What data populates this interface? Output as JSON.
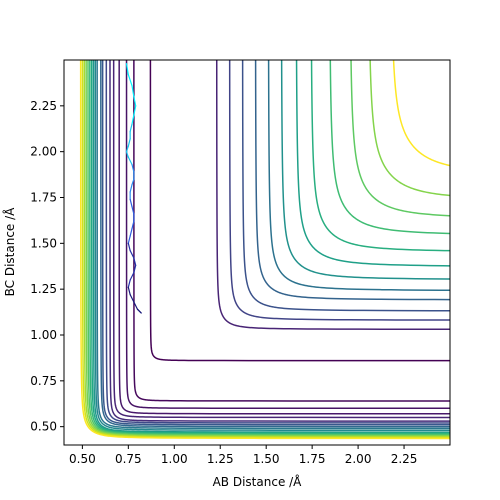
{
  "chart_data": {
    "type": "contour",
    "title": "",
    "xlabel": "AB Distance /Å",
    "ylabel": "BC Distance /Å",
    "xlim": [
      0.4,
      2.5
    ],
    "ylim": [
      0.4,
      2.5
    ],
    "xticks": [
      "0.50",
      "0.75",
      "1.00",
      "1.25",
      "1.50",
      "1.75",
      "2.00",
      "2.25"
    ],
    "yticks": [
      "0.50",
      "0.75",
      "1.00",
      "1.25",
      "1.50",
      "1.75",
      "2.00",
      "2.25"
    ],
    "xtick_values": [
      0.5,
      0.75,
      1.0,
      1.25,
      1.5,
      1.75,
      2.0,
      2.25
    ],
    "ytick_values": [
      0.5,
      0.75,
      1.0,
      1.25,
      1.5,
      1.75,
      2.0,
      2.25
    ],
    "colormap": "viridis",
    "grid": false,
    "legend": "none",
    "contour_levels": [
      {
        "x_asymptote": 0.87,
        "y_asymptote": 0.86,
        "color": "#440154"
      },
      {
        "x_asymptote": 0.78,
        "y_asymptote": 0.64,
        "color": "#46085c"
      },
      {
        "x_asymptote": 0.74,
        "y_asymptote": 0.6,
        "color": "#471365"
      },
      {
        "x_asymptote": 0.7,
        "y_asymptote": 0.57,
        "color": "#48186a"
      },
      {
        "x_asymptote": 0.67,
        "y_asymptote": 0.55,
        "color": "#482475"
      },
      {
        "x_asymptote": 0.65,
        "y_asymptote": 0.53,
        "color": "#472c7a"
      },
      {
        "x_asymptote": 0.63,
        "y_asymptote": 0.52,
        "color": "#3e4989"
      },
      {
        "x_asymptote": 0.61,
        "y_asymptote": 0.51,
        "color": "#38588c"
      },
      {
        "x_asymptote": 0.6,
        "y_asymptote": 0.5,
        "color": "#31688e"
      },
      {
        "x_asymptote": 0.58,
        "y_asymptote": 0.49,
        "color": "#2a788e"
      },
      {
        "x_asymptote": 0.57,
        "y_asymptote": 0.48,
        "color": "#23888e"
      },
      {
        "x_asymptote": 0.56,
        "y_asymptote": 0.47,
        "color": "#1f988b"
      },
      {
        "x_asymptote": 0.55,
        "y_asymptote": 0.465,
        "color": "#22a884"
      },
      {
        "x_asymptote": 0.54,
        "y_asymptote": 0.46,
        "color": "#35b779"
      },
      {
        "x_asymptote": 0.53,
        "y_asymptote": 0.455,
        "color": "#54c568"
      },
      {
        "x_asymptote": 0.52,
        "y_asymptote": 0.45,
        "color": "#7ad151"
      },
      {
        "x_asymptote": 0.51,
        "y_asymptote": 0.445,
        "color": "#a5db36"
      },
      {
        "x_asymptote": 0.5,
        "y_asymptote": 0.44,
        "color": "#d2e21b"
      },
      {
        "x_asymptote": 0.49,
        "y_asymptote": 0.435,
        "color": "#fde725"
      }
    ],
    "plateau_contours": [
      {
        "x_asymptote": 1.23,
        "y_asymptote": 1.03,
        "color": "#482475"
      },
      {
        "x_asymptote": 1.3,
        "y_asymptote": 1.08,
        "color": "#414487"
      },
      {
        "x_asymptote": 1.37,
        "y_asymptote": 1.13,
        "color": "#3b528b"
      },
      {
        "x_asymptote": 1.44,
        "y_asymptote": 1.19,
        "color": "#33638d"
      },
      {
        "x_asymptote": 1.51,
        "y_asymptote": 1.24,
        "color": "#2c728e"
      },
      {
        "x_asymptote": 1.58,
        "y_asymptote": 1.3,
        "color": "#21918c"
      },
      {
        "x_asymptote": 1.66,
        "y_asymptote": 1.37,
        "color": "#1fa088"
      },
      {
        "x_asymptote": 1.74,
        "y_asymptote": 1.45,
        "color": "#28ae80"
      },
      {
        "x_asymptote": 1.84,
        "y_asymptote": 1.54,
        "color": "#3fbc73"
      },
      {
        "x_asymptote": 1.95,
        "y_asymptote": 1.63,
        "color": "#5ec962"
      },
      {
        "x_asymptote": 2.05,
        "y_asymptote": 1.73,
        "color": "#84d44b"
      },
      {
        "x_asymptote": 2.17,
        "y_asymptote": 1.87,
        "color": "#fde725"
      }
    ],
    "trajectory": {
      "points": [
        [
          0.74,
          2.48
        ],
        [
          0.75,
          2.42
        ],
        [
          0.77,
          2.36
        ],
        [
          0.78,
          2.3
        ],
        [
          0.79,
          2.25
        ],
        [
          0.78,
          2.2
        ],
        [
          0.77,
          2.15
        ],
        [
          0.76,
          2.11
        ],
        [
          0.76,
          2.07
        ],
        [
          0.75,
          2.03
        ],
        [
          0.74,
          2.0
        ],
        [
          0.75,
          1.97
        ],
        [
          0.77,
          1.93
        ],
        [
          0.78,
          1.89
        ],
        [
          0.78,
          1.85
        ],
        [
          0.77,
          1.82
        ],
        [
          0.76,
          1.78
        ],
        [
          0.76,
          1.74
        ],
        [
          0.77,
          1.7
        ],
        [
          0.78,
          1.66
        ],
        [
          0.78,
          1.62
        ],
        [
          0.77,
          1.58
        ],
        [
          0.76,
          1.54
        ],
        [
          0.75,
          1.5
        ],
        [
          0.76,
          1.46
        ],
        [
          0.78,
          1.42
        ],
        [
          0.79,
          1.38
        ],
        [
          0.78,
          1.34
        ],
        [
          0.76,
          1.3
        ],
        [
          0.75,
          1.26
        ],
        [
          0.76,
          1.22
        ],
        [
          0.78,
          1.18
        ],
        [
          0.8,
          1.14
        ],
        [
          0.82,
          1.12
        ],
        [
          0.8,
          1.14
        ]
      ],
      "colors": [
        "#00f5ff",
        "#18c8f0",
        "#2a8cf0",
        "#2d5ee0",
        "#2431a8",
        "#1a1a7a"
      ]
    }
  }
}
